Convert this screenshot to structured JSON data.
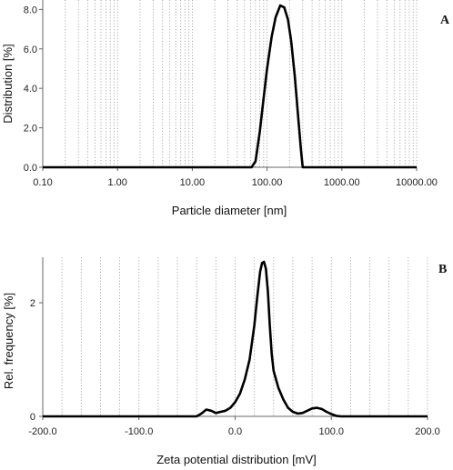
{
  "chart_data": [
    {
      "type": "line",
      "panel_label": "A",
      "xlabel": "Particle diameter [nm]",
      "ylabel": "Distribution [%]",
      "xscale": "log",
      "xlim": [
        0.1,
        10000
      ],
      "ylim": [
        0,
        8.2
      ],
      "xticks": [
        "0.10",
        "1.00",
        "10.00",
        "100.00",
        "1000.00",
        "10000.00"
      ],
      "yticks": [
        "0.0",
        "2.0",
        "4.0",
        "6.0",
        "8.0"
      ],
      "grid": "vertical dotted",
      "series": [
        {
          "x": [
            0.1,
            1,
            10,
            50,
            62,
            70,
            80,
            90,
            100,
            115,
            130,
            150,
            170,
            190,
            210,
            235,
            260,
            285,
            300,
            320,
            10000
          ],
          "y": [
            0,
            0,
            0,
            0,
            0,
            0.3,
            1.8,
            3.5,
            5.0,
            6.6,
            7.6,
            8.2,
            8.1,
            7.5,
            6.4,
            4.6,
            2.6,
            0.8,
            0,
            0,
            0
          ]
        }
      ]
    },
    {
      "type": "line",
      "panel_label": "B",
      "xlabel": "Zeta potential distribution [mV]",
      "ylabel": "Rel. frequency [%]",
      "xlim": [
        -200,
        200
      ],
      "ylim": [
        0,
        2.8
      ],
      "xticks": [
        "-200.0",
        "-100.0",
        "0.0",
        "100.0",
        "200.0"
      ],
      "yticks": [
        "0",
        "2"
      ],
      "grid": "vertical dotted",
      "series": [
        {
          "x": [
            -200,
            -40,
            -35,
            -30,
            -25,
            -20,
            -15,
            -10,
            -5,
            0,
            5,
            10,
            15,
            20,
            23,
            26,
            28,
            30,
            32,
            34,
            36,
            38,
            40,
            45,
            50,
            55,
            60,
            65,
            70,
            75,
            80,
            85,
            90,
            95,
            100,
            105,
            110,
            200
          ],
          "y": [
            0,
            0,
            0.05,
            0.12,
            0.1,
            0.06,
            0.08,
            0.1,
            0.15,
            0.25,
            0.4,
            0.65,
            1.0,
            1.6,
            2.1,
            2.55,
            2.7,
            2.72,
            2.6,
            2.2,
            1.6,
            1.1,
            0.8,
            0.5,
            0.3,
            0.15,
            0.08,
            0.05,
            0.06,
            0.1,
            0.14,
            0.15,
            0.13,
            0.08,
            0.04,
            0.01,
            0,
            0
          ]
        }
      ]
    }
  ]
}
